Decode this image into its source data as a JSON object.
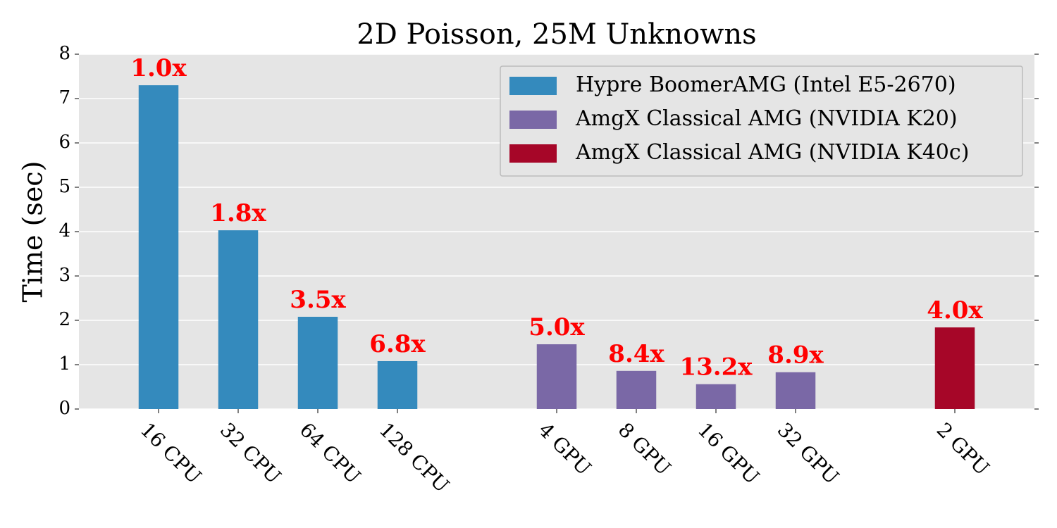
{
  "chart_data": {
    "type": "bar",
    "title": "2D Poisson, 25M Unknowns",
    "y_label": "Time (sec)",
    "categories": [
      "16 CPU",
      "32 CPU",
      "64 CPU",
      "128 CPU",
      null,
      "4 GPU",
      "8 GPU",
      "16 GPU",
      "32 GPU",
      null,
      "2 GPU"
    ],
    "series": [
      {
        "name": "Hypre BoomerAMG (Intel E5-2670)",
        "color": "#348ABD",
        "values": [
          7.3,
          4.03,
          2.08,
          1.08,
          null,
          null,
          null,
          null,
          null,
          null,
          null
        ],
        "labels": [
          "1.0x",
          "1.8x",
          "3.5x",
          "6.8x",
          null,
          null,
          null,
          null,
          null,
          null,
          null
        ]
      },
      {
        "name": "AmgX Classical AMG (NVIDIA K20)",
        "color": "#7A68A6",
        "values": [
          null,
          null,
          null,
          null,
          null,
          1.46,
          0.86,
          0.56,
          0.83,
          null,
          null
        ],
        "labels": [
          null,
          null,
          null,
          null,
          null,
          "5.0x",
          "8.4x",
          "13.2x",
          "8.9x",
          null,
          null
        ]
      },
      {
        "name": "AmgX Classical AMG (NVIDIA K40c)",
        "color": "#A60628",
        "values": [
          null,
          null,
          null,
          null,
          null,
          null,
          null,
          null,
          null,
          null,
          1.84
        ],
        "labels": [
          null,
          null,
          null,
          null,
          null,
          null,
          null,
          null,
          null,
          null,
          "4.0x"
        ]
      }
    ],
    "ylim": [
      0,
      8
    ],
    "yticks": [
      0,
      1,
      2,
      3,
      4,
      5,
      6,
      7,
      8
    ],
    "grid": true,
    "legend": "upper right",
    "label_color": "#ff0000",
    "background": "#E5E5E5"
  }
}
